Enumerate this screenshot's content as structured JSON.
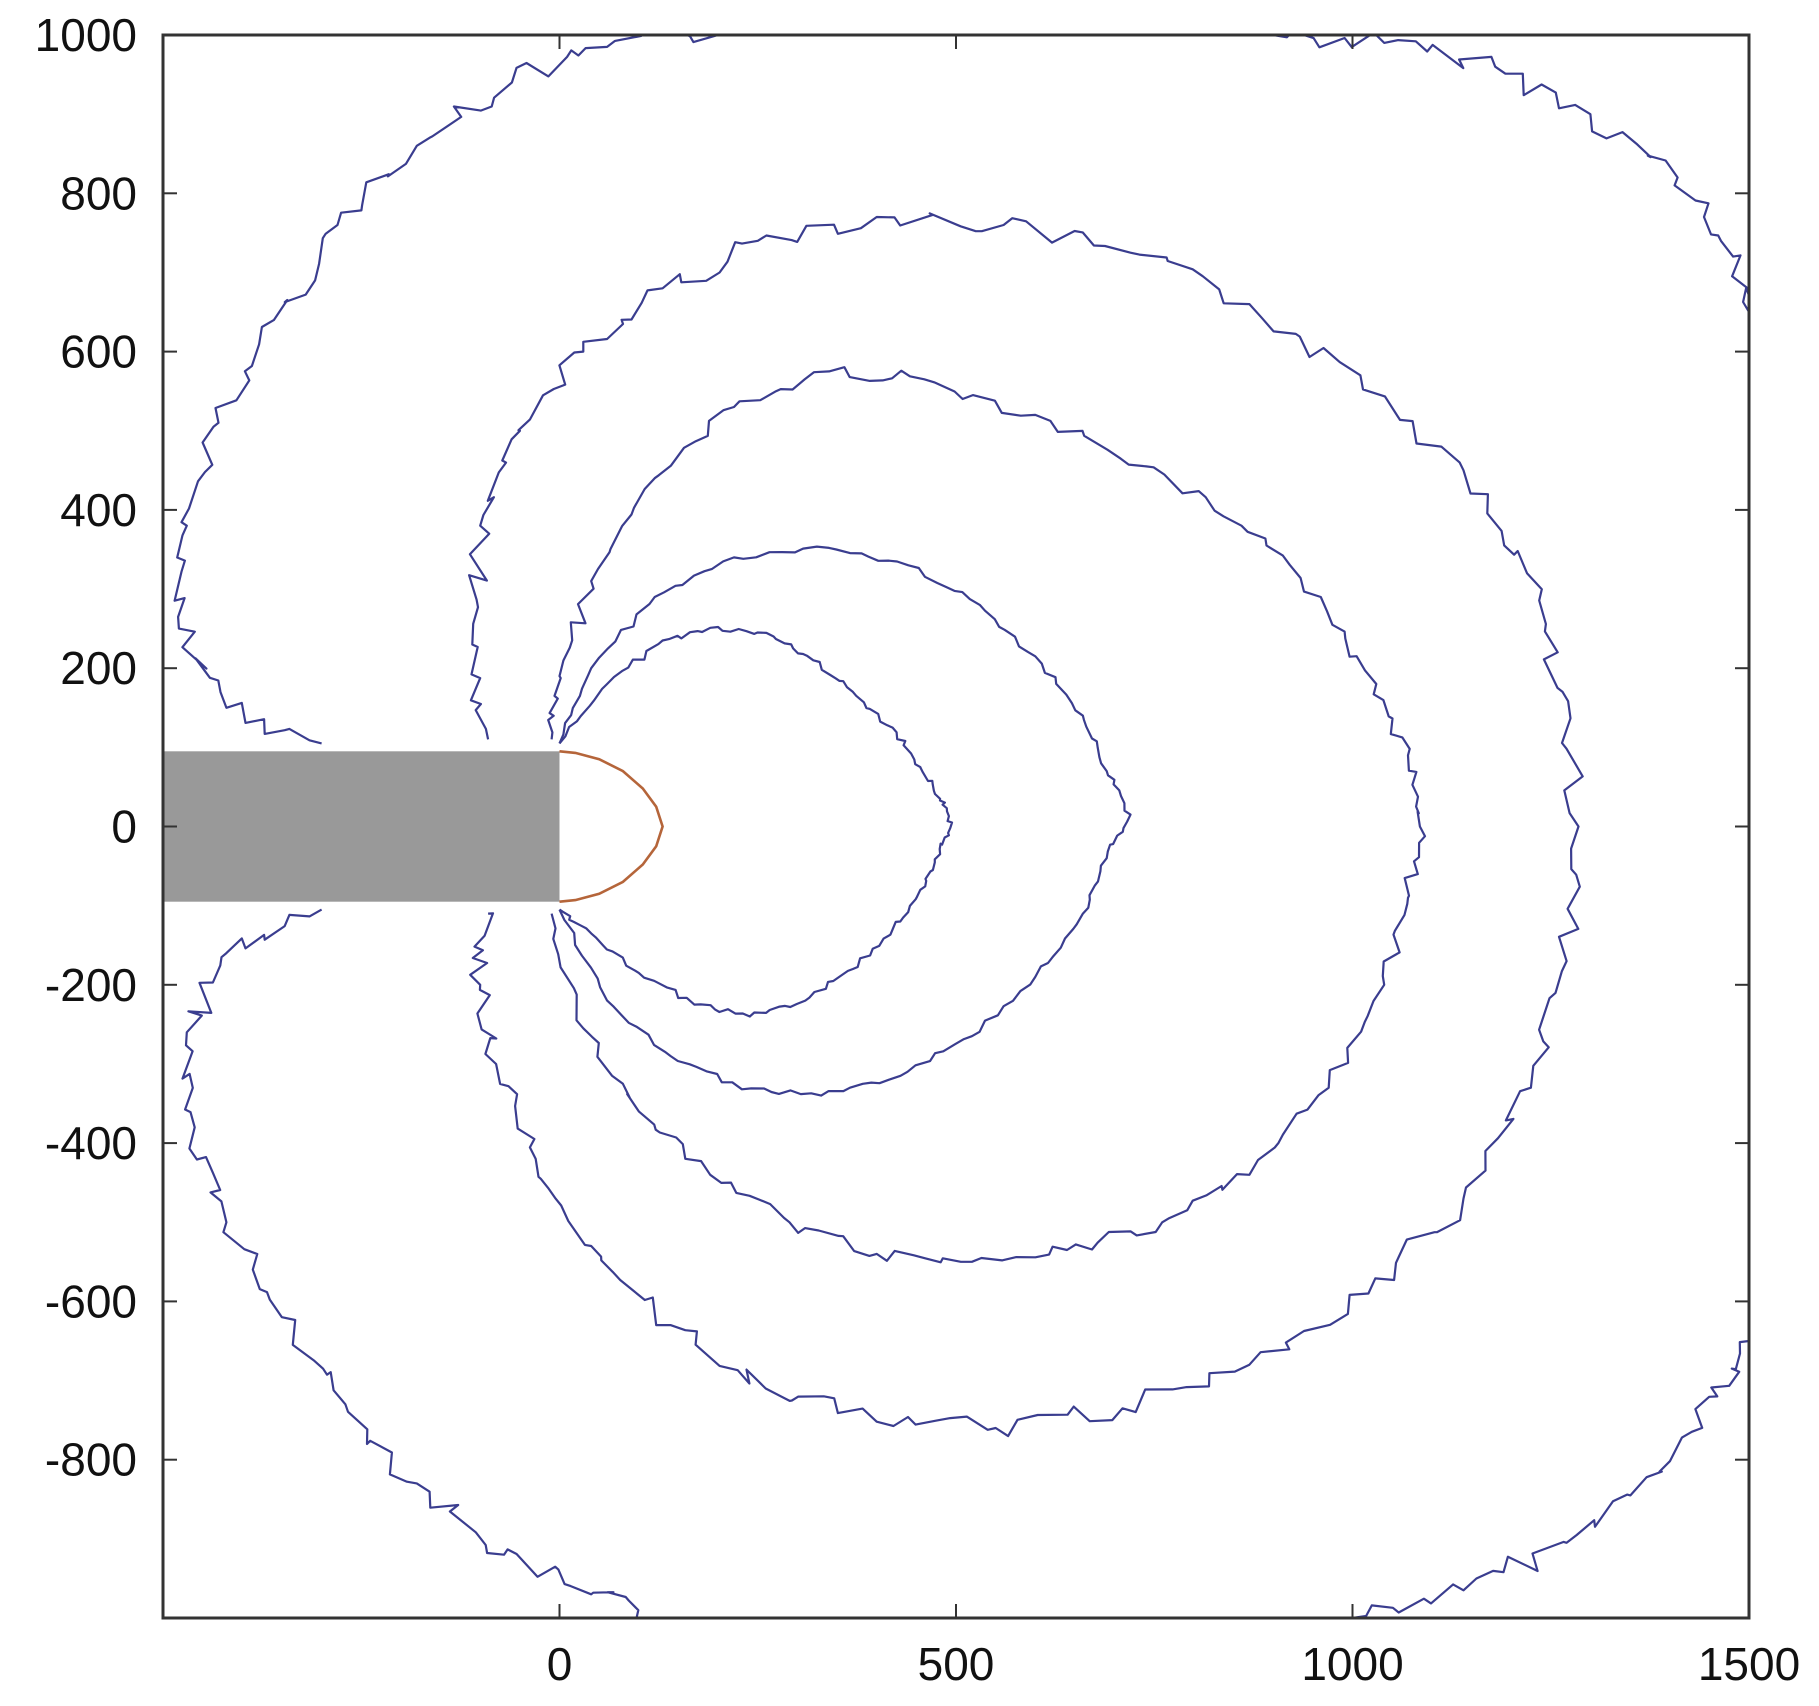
{
  "chart_data": {
    "type": "line",
    "title": "",
    "xlabel": "",
    "ylabel": "",
    "xlim": [
      -500,
      1500
    ],
    "ylim": [
      -1000,
      1000
    ],
    "x_ticks": [
      0,
      500,
      1000,
      1500
    ],
    "x_tick_labels": [
      "0",
      "500",
      "1000",
      "1500"
    ],
    "y_ticks": [
      1000,
      800,
      600,
      400,
      200,
      0,
      -200,
      -400,
      -600,
      -800
    ],
    "y_tick_labels": [
      "1000",
      "800",
      "600",
      "400",
      "200",
      "0",
      "-200",
      "-400",
      "-600",
      "-800"
    ],
    "grid": false,
    "colors": {
      "contour": "#3a3d8f",
      "front": "#b5653a",
      "block": "#999999",
      "axis": "#333333"
    },
    "block": {
      "x": [
        -500,
        0
      ],
      "y": [
        -95,
        95
      ]
    },
    "front_curve": [
      [
        0,
        95
      ],
      [
        20,
        93
      ],
      [
        50,
        85
      ],
      [
        80,
        70
      ],
      [
        105,
        48
      ],
      [
        122,
        25
      ],
      [
        130,
        0
      ],
      [
        122,
        -25
      ],
      [
        105,
        -48
      ],
      [
        80,
        -70
      ],
      [
        50,
        -85
      ],
      [
        20,
        -93
      ],
      [
        0,
        -95
      ]
    ],
    "contours": [
      {
        "name": "",
        "points": [
          [
            0,
            105
          ],
          [
            60,
            180
          ],
          [
            130,
            235
          ],
          [
            200,
            252
          ],
          [
            270,
            240
          ],
          [
            320,
            210
          ],
          [
            370,
            170
          ],
          [
            420,
            125
          ],
          [
            455,
            75
          ],
          [
            480,
            35
          ],
          [
            495,
            5
          ],
          [
            480,
            -35
          ],
          [
            455,
            -80
          ],
          [
            420,
            -130
          ],
          [
            370,
            -180
          ],
          [
            310,
            -220
          ],
          [
            240,
            -240
          ],
          [
            170,
            -225
          ],
          [
            100,
            -185
          ],
          [
            40,
            -135
          ],
          [
            0,
            -105
          ]
        ]
      },
      {
        "name": "",
        "points": [
          [
            0,
            105
          ],
          [
            40,
            200
          ],
          [
            120,
            290
          ],
          [
            220,
            340
          ],
          [
            340,
            352
          ],
          [
            440,
            330
          ],
          [
            530,
            280
          ],
          [
            600,
            215
          ],
          [
            660,
            140
          ],
          [
            690,
            70
          ],
          [
            720,
            15
          ],
          [
            690,
            -40
          ],
          [
            660,
            -110
          ],
          [
            600,
            -190
          ],
          [
            520,
            -265
          ],
          [
            430,
            -315
          ],
          [
            330,
            -340
          ],
          [
            230,
            -332
          ],
          [
            140,
            -290
          ],
          [
            60,
            -220
          ],
          [
            0,
            -105
          ]
        ]
      },
      {
        "name": "",
        "points": [
          [
            -10,
            110
          ],
          [
            0,
            190
          ],
          [
            40,
            310
          ],
          [
            120,
            440
          ],
          [
            220,
            530
          ],
          [
            340,
            575
          ],
          [
            460,
            565
          ],
          [
            600,
            520
          ],
          [
            740,
            455
          ],
          [
            860,
            380
          ],
          [
            960,
            290
          ],
          [
            1030,
            180
          ],
          [
            1070,
            90
          ],
          [
            1085,
            0
          ],
          [
            1070,
            -90
          ],
          [
            1040,
            -200
          ],
          [
            970,
            -330
          ],
          [
            870,
            -440
          ],
          [
            760,
            -500
          ],
          [
            640,
            -535
          ],
          [
            520,
            -550
          ],
          [
            400,
            -540
          ],
          [
            290,
            -500
          ],
          [
            190,
            -440
          ],
          [
            100,
            -360
          ],
          [
            30,
            -255
          ],
          [
            -10,
            -110
          ]
        ]
      },
      {
        "name": "",
        "points": [
          [
            -90,
            110
          ],
          [
            -110,
            230
          ],
          [
            -100,
            380
          ],
          [
            -50,
            500
          ],
          [
            30,
            600
          ],
          [
            130,
            680
          ],
          [
            250,
            740
          ],
          [
            400,
            770
          ],
          [
            560,
            760
          ],
          [
            720,
            725
          ],
          [
            870,
            660
          ],
          [
            1010,
            570
          ],
          [
            1140,
            450
          ],
          [
            1220,
            320
          ],
          [
            1265,
            170
          ],
          [
            1285,
            0
          ],
          [
            1270,
            -170
          ],
          [
            1225,
            -330
          ],
          [
            1140,
            -470
          ],
          [
            1020,
            -590
          ],
          [
            870,
            -680
          ],
          [
            710,
            -735
          ],
          [
            550,
            -760
          ],
          [
            400,
            -752
          ],
          [
            260,
            -710
          ],
          [
            140,
            -630
          ],
          [
            40,
            -530
          ],
          [
            -30,
            -420
          ],
          [
            -80,
            -300
          ],
          [
            -100,
            -200
          ],
          [
            -90,
            -110
          ]
        ]
      },
      {
        "name": "",
        "points": [
          [
            -300,
            105
          ],
          [
            -420,
            150
          ],
          [
            -480,
            250
          ],
          [
            -470,
            380
          ],
          [
            -430,
            510
          ],
          [
            -360,
            640
          ],
          [
            -280,
            760
          ],
          [
            -180,
            860
          ],
          [
            -60,
            940
          ],
          [
            60,
            985
          ],
          [
            200,
            1000
          ]
        ]
      },
      {
        "name": "",
        "points": [
          [
            900,
            1000
          ],
          [
            1040,
            990
          ],
          [
            1180,
            960
          ],
          [
            1300,
            900
          ],
          [
            1410,
            820
          ],
          [
            1480,
            720
          ],
          [
            1500,
            650
          ]
        ]
      },
      {
        "name": "",
        "points": [
          [
            -300,
            -105
          ],
          [
            -420,
            -160
          ],
          [
            -470,
            -260
          ],
          [
            -460,
            -380
          ],
          [
            -420,
            -500
          ],
          [
            -350,
            -620
          ],
          [
            -270,
            -730
          ],
          [
            -180,
            -830
          ],
          [
            -70,
            -920
          ],
          [
            40,
            -970
          ],
          [
            120,
            -1000
          ]
        ]
      },
      {
        "name": "",
        "points": [
          [
            1000,
            -1000
          ],
          [
            1140,
            -965
          ],
          [
            1270,
            -905
          ],
          [
            1390,
            -815
          ],
          [
            1460,
            -720
          ],
          [
            1500,
            -650
          ]
        ]
      }
    ]
  }
}
